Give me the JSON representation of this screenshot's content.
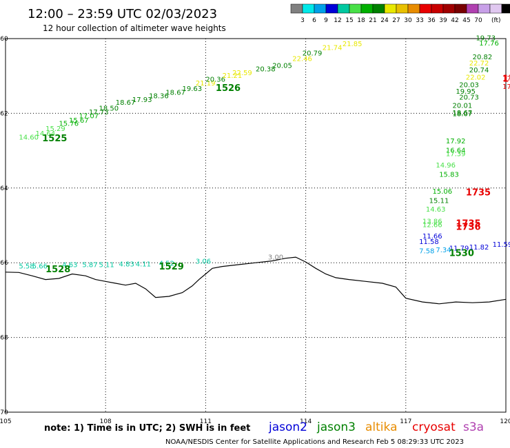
{
  "header": {
    "title": "12:00 – 23:59 UTC 02/03/2023",
    "subtitle": "12 hour collection of altimeter wave heights"
  },
  "legend": {
    "unit": "(ft)",
    "colors": [
      "#808080",
      "#00e8e8",
      "#00a0e8",
      "#0000d8",
      "#00c8a0",
      "#48e048",
      "#00b000",
      "#008000",
      "#e8e800",
      "#e8c000",
      "#e88c00",
      "#e80000",
      "#c80000",
      "#a00000",
      "#780000",
      "#b040b0",
      "#c8a0e8",
      "#e0c8f0",
      "#000000"
    ],
    "labels": [
      "3",
      "6",
      "9",
      "12",
      "15",
      "18",
      "21",
      "24",
      "27",
      "30",
      "33",
      "36",
      "39",
      "42",
      "45",
      "70"
    ]
  },
  "axes": {
    "lon_range": [
      105,
      120
    ],
    "lat_range": [
      -70,
      -60
    ],
    "lon_ticks": [
      "105",
      "108",
      "111",
      "114",
      "117",
      "120"
    ],
    "lat_ticks": [
      "60",
      "62",
      "64",
      "66",
      "68",
      "70"
    ],
    "lon_values": [
      105,
      108,
      111,
      114,
      117,
      120
    ],
    "lat_values": [
      -60,
      -62,
      -64,
      -66,
      -68,
      -70
    ]
  },
  "contour": {
    "label": "3.00",
    "points": [
      [
        105.0,
        -66.25
      ],
      [
        105.4,
        -66.26
      ],
      [
        105.8,
        -66.35
      ],
      [
        106.2,
        -66.45
      ],
      [
        106.6,
        -66.42
      ],
      [
        107.0,
        -66.3
      ],
      [
        107.4,
        -66.35
      ],
      [
        107.7,
        -66.45
      ],
      [
        108.0,
        -66.5
      ],
      [
        108.3,
        -66.55
      ],
      [
        108.6,
        -66.6
      ],
      [
        108.9,
        -66.55
      ],
      [
        109.2,
        -66.7
      ],
      [
        109.5,
        -66.93
      ],
      [
        109.9,
        -66.9
      ],
      [
        110.3,
        -66.8
      ],
      [
        110.6,
        -66.62
      ],
      [
        110.8,
        -66.45
      ],
      [
        111.0,
        -66.3
      ],
      [
        111.2,
        -66.15
      ],
      [
        111.5,
        -66.1
      ],
      [
        112.0,
        -66.05
      ],
      [
        112.5,
        -66.0
      ],
      [
        113.0,
        -65.95
      ],
      [
        113.4,
        -65.88
      ],
      [
        113.7,
        -65.85
      ],
      [
        114.0,
        -65.98
      ],
      [
        114.3,
        -66.15
      ],
      [
        114.6,
        -66.3
      ],
      [
        114.9,
        -66.4
      ],
      [
        115.3,
        -66.45
      ],
      [
        115.8,
        -66.5
      ],
      [
        116.3,
        -66.55
      ],
      [
        116.7,
        -66.65
      ],
      [
        117.0,
        -66.95
      ],
      [
        117.5,
        -67.05
      ],
      [
        118.0,
        -67.1
      ],
      [
        118.5,
        -67.05
      ],
      [
        119.0,
        -67.07
      ],
      [
        119.5,
        -67.05
      ],
      [
        120.0,
        -66.98
      ]
    ]
  },
  "observations": [
    {
      "t": "14.60",
      "lon": 105.4,
      "lat": -62.7,
      "c": "#48e048"
    },
    {
      "t": "14.64",
      "lon": 105.9,
      "lat": -62.6,
      "c": "#48e048"
    },
    {
      "t": "15.29",
      "lon": 106.2,
      "lat": -62.47,
      "c": "#48e048"
    },
    {
      "t": "15.76",
      "lon": 106.6,
      "lat": -62.33,
      "c": "#00b000"
    },
    {
      "t": "15.67",
      "lon": 106.9,
      "lat": -62.25,
      "c": "#00b000"
    },
    {
      "t": "17.07",
      "lon": 107.2,
      "lat": -62.13,
      "c": "#00b000"
    },
    {
      "t": "17.73",
      "lon": 107.5,
      "lat": -62.03,
      "c": "#008000"
    },
    {
      "t": "18.50",
      "lon": 107.8,
      "lat": -61.93,
      "c": "#008000"
    },
    {
      "t": "18.67",
      "lon": 108.3,
      "lat": -61.77,
      "c": "#008000"
    },
    {
      "t": "17.93",
      "lon": 108.8,
      "lat": -61.7,
      "c": "#008000"
    },
    {
      "t": "18.36",
      "lon": 109.3,
      "lat": -61.6,
      "c": "#008000"
    },
    {
      "t": "18.67",
      "lon": 109.8,
      "lat": -61.5,
      "c": "#008000"
    },
    {
      "t": "19.63",
      "lon": 110.3,
      "lat": -61.4,
      "c": "#008000"
    },
    {
      "t": "21.19",
      "lon": 110.7,
      "lat": -61.25,
      "c": "#e8e800"
    },
    {
      "t": "20.36",
      "lon": 111.0,
      "lat": -61.15,
      "c": "#008000"
    },
    {
      "t": "21.21",
      "lon": 111.5,
      "lat": -61.05,
      "c": "#e8e800"
    },
    {
      "t": "22.59",
      "lon": 111.8,
      "lat": -60.98,
      "c": "#e8e800"
    },
    {
      "t": "20.38",
      "lon": 112.5,
      "lat": -60.88,
      "c": "#008000"
    },
    {
      "t": "20.05",
      "lon": 113.0,
      "lat": -60.78,
      "c": "#008000"
    },
    {
      "t": "22.46",
      "lon": 113.6,
      "lat": -60.6,
      "c": "#e8e800"
    },
    {
      "t": "20.79",
      "lon": 113.9,
      "lat": -60.45,
      "c": "#008000"
    },
    {
      "t": "21.74",
      "lon": 114.5,
      "lat": -60.3,
      "c": "#e8e800"
    },
    {
      "t": "21.85",
      "lon": 115.1,
      "lat": -60.2,
      "c": "#e8e800"
    },
    {
      "t": "19.73",
      "lon": 119.1,
      "lat": -60.05,
      "c": "#008000"
    },
    {
      "t": "17.76",
      "lon": 119.2,
      "lat": -60.18,
      "c": "#00b000"
    },
    {
      "t": "20.82",
      "lon": 119.0,
      "lat": -60.55,
      "c": "#008000"
    },
    {
      "t": "22.72",
      "lon": 118.9,
      "lat": -60.72,
      "c": "#e8e800"
    },
    {
      "t": "20.74",
      "lon": 118.9,
      "lat": -60.9,
      "c": "#008000"
    },
    {
      "t": "22.02",
      "lon": 118.8,
      "lat": -61.1,
      "c": "#e8e800"
    },
    {
      "t": "20.03",
      "lon": 118.6,
      "lat": -61.3,
      "c": "#008000"
    },
    {
      "t": "19.95",
      "lon": 118.5,
      "lat": -61.48,
      "c": "#008000"
    },
    {
      "t": "20.73",
      "lon": 118.6,
      "lat": -61.63,
      "c": "#008000"
    },
    {
      "t": "20.01",
      "lon": 118.4,
      "lat": -61.85,
      "c": "#008000"
    },
    {
      "t": "18.67",
      "lon": 118.4,
      "lat": -62.05,
      "c": "#008000"
    },
    {
      "t": "18.07",
      "lon": 118.4,
      "lat": -62.08,
      "c": "#008000"
    },
    {
      "t": "17.92",
      "lon": 118.2,
      "lat": -62.8,
      "c": "#00b000"
    },
    {
      "t": "16.64",
      "lon": 118.2,
      "lat": -63.05,
      "c": "#00b000"
    },
    {
      "t": "17.39",
      "lon": 118.2,
      "lat": -63.15,
      "c": "#48e048"
    },
    {
      "t": "14.96",
      "lon": 117.9,
      "lat": -63.45,
      "c": "#48e048"
    },
    {
      "t": "15.83",
      "lon": 118.0,
      "lat": -63.7,
      "c": "#00b000"
    },
    {
      "t": "15.06",
      "lon": 117.8,
      "lat": -64.15,
      "c": "#00b000"
    },
    {
      "t": "15.11",
      "lon": 117.7,
      "lat": -64.4,
      "c": "#008000"
    },
    {
      "t": "14.63",
      "lon": 117.6,
      "lat": -64.63,
      "c": "#48e048"
    },
    {
      "t": "13.86",
      "lon": 117.5,
      "lat": -64.95,
      "c": "#48e048"
    },
    {
      "t": "12.66",
      "lon": 117.5,
      "lat": -65.05,
      "c": "#48e048"
    },
    {
      "t": "11.66",
      "lon": 117.5,
      "lat": -65.35,
      "c": "#0000d8"
    },
    {
      "t": "11.58",
      "lon": 117.4,
      "lat": -65.5,
      "c": "#0000d8"
    },
    {
      "t": "7.58",
      "lon": 117.4,
      "lat": -65.75,
      "c": "#00a0e8"
    },
    {
      "t": "7.34",
      "lon": 117.9,
      "lat": -65.72,
      "c": "#00a0e8"
    },
    {
      "t": "11.79",
      "lon": 118.3,
      "lat": -65.67,
      "c": "#0000d8"
    },
    {
      "t": "11.82",
      "lon": 118.9,
      "lat": -65.65,
      "c": "#0000d8"
    },
    {
      "t": "11.59",
      "lon": 119.6,
      "lat": -65.57,
      "c": "#0000d8"
    },
    {
      "t": "17",
      "lon": 119.9,
      "lat": -61.13,
      "c": "#e80000"
    },
    {
      "t": "17",
      "lon": 119.9,
      "lat": -61.35,
      "c": "#e80000"
    },
    {
      "t": "5.58",
      "lon": 105.4,
      "lat": -66.15,
      "c": "#00c8a0"
    },
    {
      "t": "5.66",
      "lon": 105.8,
      "lat": -66.15,
      "c": "#00c8a0"
    },
    {
      "t": "4.63",
      "lon": 106.7,
      "lat": -66.12,
      "c": "#00c8a0"
    },
    {
      "t": "5.87",
      "lon": 107.3,
      "lat": -66.12,
      "c": "#00c8a0"
    },
    {
      "t": "5.11",
      "lon": 107.8,
      "lat": -66.12,
      "c": "#00c8a0"
    },
    {
      "t": "4.83",
      "lon": 108.4,
      "lat": -66.1,
      "c": "#00c8a0"
    },
    {
      "t": "4.11",
      "lon": 108.9,
      "lat": -66.1,
      "c": "#00c8a0"
    },
    {
      "t": "4.52",
      "lon": 109.6,
      "lat": -66.08,
      "c": "#00c8a0"
    },
    {
      "t": "3.06",
      "lon": 110.7,
      "lat": -66.02,
      "c": "#00c8a0"
    }
  ],
  "time_labels": [
    {
      "t": "1525",
      "lon": 106.1,
      "lat": -62.75,
      "c": "#008000"
    },
    {
      "t": "1526",
      "lon": 111.3,
      "lat": -61.4,
      "c": "#008000"
    },
    {
      "t": "1528",
      "lon": 106.2,
      "lat": -66.25,
      "c": "#008000"
    },
    {
      "t": "1529",
      "lon": 109.6,
      "lat": -66.18,
      "c": "#008000"
    },
    {
      "t": "1530",
      "lon": 118.3,
      "lat": -65.82,
      "c": "#008000"
    },
    {
      "t": "1735",
      "lon": 118.8,
      "lat": -64.2,
      "c": "#e80000"
    },
    {
      "t": "1735",
      "lon": 118.5,
      "lat": -65.03,
      "c": "#e80000"
    },
    {
      "t": "1736",
      "lon": 118.5,
      "lat": -65.12,
      "c": "#e80000"
    },
    {
      "t": "17",
      "lon": 119.9,
      "lat": -61.15,
      "c": "#e80000"
    }
  ],
  "footer": {
    "note": "note: 1) Time is in UTC; 2) SWH is in feet",
    "satellites": [
      {
        "name": "jason2",
        "c": "#0000d8"
      },
      {
        "name": "jason3",
        "c": "#008000"
      },
      {
        "name": "altika",
        "c": "#e88c00"
      },
      {
        "name": "cryosat",
        "c": "#e80000"
      },
      {
        "name": "s3a",
        "c": "#b040b0"
      }
    ],
    "credit": "NOAA/NESDIS Center for Satellite Applications and Research    Feb  5 08:29:33 UTC 2023"
  }
}
